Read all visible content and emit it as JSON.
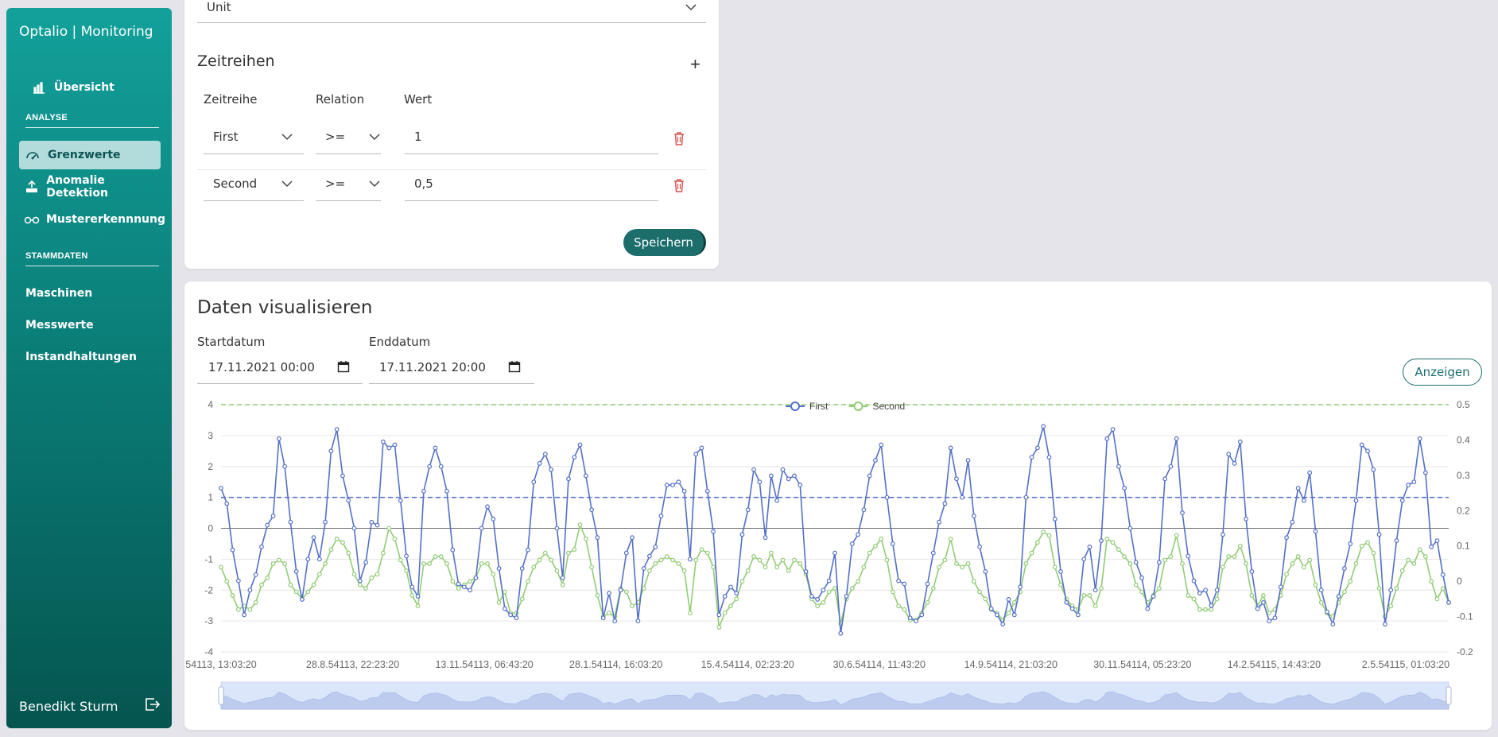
{
  "sidebar": {
    "brand": "Optalio | Monitoring",
    "overview": "Übersicht",
    "section_analysis": "ANALYSE",
    "item_limits": "Grenzwerte",
    "item_anomaly": "Anomalie Detektion",
    "item_pattern": "Mustererkennnung",
    "section_master": "STAMMDATEN",
    "item_machines": "Maschinen",
    "item_measures": "Messwerte",
    "item_maintenance": "Instandhaltungen",
    "user": "Benedikt Sturm"
  },
  "limits_card": {
    "unit_value": "Unit",
    "title": "Zeitreihen",
    "col_series": "Zeitreihe",
    "col_relation": "Relation",
    "col_value": "Wert",
    "rows": [
      {
        "series": "First",
        "relation": ">=",
        "value": "1"
      },
      {
        "series": "Second",
        "relation": ">=",
        "value": "0,5"
      }
    ],
    "save_label": "Speichern"
  },
  "viz_card": {
    "title": "Daten visualisieren",
    "start_label": "Startdatum",
    "start_value": "17.11.2021 00:00",
    "end_label": "Enddatum",
    "end_value": "17.11.2021 20:00",
    "show_label": "Anzeigen"
  },
  "chart_data": {
    "type": "line",
    "legend": [
      "First",
      "Second"
    ],
    "legend_position": "top-center",
    "y_left": {
      "min": -4,
      "max": 4,
      "ticks": [
        "4",
        "3",
        "2",
        "1",
        "0",
        "-1",
        "-2",
        "-3",
        "-4"
      ]
    },
    "y_right": {
      "min": -0.2,
      "max": 0.5,
      "ticks": [
        "0.5",
        "0.4",
        "0.3",
        "0.2",
        "0.1",
        "0",
        "-0.1",
        "-0.2"
      ]
    },
    "x_ticks": [
      "54113, 13:03:20",
      "28.8.54113, 22:23:20",
      "13.11.54113, 06:43:20",
      "28.1.54114, 16:03:20",
      "15.4.54114, 02:23:20",
      "30.6.54114, 11:43:20",
      "14.9.54114, 21:03:20",
      "30.11.54114, 05:23:20",
      "14.2.54115, 14:43:20",
      "2.5.54115, 01:03:20"
    ],
    "threshold_first": 1,
    "threshold_second": 0.5,
    "series": [
      {
        "name": "First",
        "color": "#5470c6",
        "axis": "left",
        "values": [
          1.3,
          0.8,
          -0.7,
          -1.7,
          -2.8,
          -2.0,
          -1.5,
          -0.6,
          0.1,
          0.4,
          2.9,
          2.0,
          0.2,
          -1.4,
          -2.3,
          -1.0,
          -0.3,
          -1.0,
          0.2,
          2.5,
          3.2,
          1.7,
          0.9,
          0.0,
          -1.7,
          -1.1,
          0.2,
          0.1,
          2.8,
          2.6,
          2.7,
          0.9,
          -0.9,
          -1.9,
          -2.2,
          1.2,
          2.0,
          2.6,
          2.0,
          1.2,
          -0.7,
          -1.8,
          -1.9,
          -2.0,
          -1.6,
          0.0,
          0.7,
          0.3,
          -1.3,
          -2.6,
          -2.8,
          -2.9,
          -1.3,
          -0.7,
          1.5,
          2.1,
          2.4,
          1.9,
          0.0,
          -1.6,
          1.6,
          2.3,
          2.7,
          1.7,
          0.6,
          -0.3,
          -2.9,
          -2.1,
          -3.0,
          -2.0,
          -0.8,
          -0.3,
          -3.0,
          -1.3,
          -0.9,
          -0.6,
          0.4,
          1.4,
          1.4,
          1.5,
          1.2,
          -1.0,
          2.4,
          2.6,
          1.2,
          -0.1,
          -2.8,
          -2.2,
          -1.9,
          -2.1,
          -0.2,
          0.6,
          1.9,
          1.5,
          -0.3,
          1.7,
          0.9,
          1.9,
          1.6,
          1.7,
          1.4,
          -1.4,
          -2.2,
          -2.3,
          -2.0,
          -1.7,
          -0.8,
          -3.4,
          -2.2,
          -0.5,
          -0.2,
          0.6,
          1.7,
          2.2,
          2.7,
          1.0,
          -0.5,
          -1.7,
          -1.8,
          -2.9,
          -3.0,
          -2.8,
          -1.8,
          -0.8,
          0.2,
          0.8,
          2.6,
          1.6,
          1.0,
          2.2,
          0.4,
          -0.6,
          -1.4,
          -2.6,
          -2.8,
          -3.1,
          -2.3,
          -2.8,
          -1.9,
          1.0,
          2.3,
          2.6,
          3.3,
          2.3,
          0.3,
          -1.4,
          -2.4,
          -2.6,
          -2.8,
          -1.0,
          -0.6,
          -2.0,
          -0.4,
          2.9,
          3.2,
          2.0,
          1.3,
          0.0,
          -1.1,
          -1.6,
          -2.6,
          -2.2,
          -1.1,
          1.6,
          2.0,
          2.9,
          0.5,
          -0.9,
          -1.7,
          -2.1,
          -2.0,
          -2.5,
          -2.0,
          -0.2,
          2.4,
          2.1,
          2.8,
          0.3,
          -1.4,
          -2.6,
          -2.4,
          -3.0,
          -2.9,
          -1.9,
          -0.3,
          0.2,
          1.3,
          0.9,
          1.8,
          -0.1,
          -2.0,
          -2.7,
          -3.1,
          -2.2,
          -1.3,
          -0.5,
          0.9,
          2.7,
          2.5,
          1.9,
          -0.2,
          -3.1,
          -2.0,
          -0.4,
          0.9,
          1.4,
          1.5,
          2.9,
          1.8,
          -0.6,
          -0.4,
          -1.5,
          -2.4
        ]
      },
      {
        "name": "Second",
        "color": "#91cc75",
        "axis": "right",
        "values": [
          0.04,
          0.0,
          -0.04,
          -0.08,
          -0.07,
          -0.08,
          -0.06,
          -0.01,
          0.01,
          0.05,
          0.06,
          0.05,
          -0.01,
          -0.03,
          -0.05,
          -0.03,
          -0.01,
          0.02,
          0.05,
          0.09,
          0.12,
          0.11,
          0.08,
          0.02,
          -0.01,
          -0.02,
          0.01,
          0.02,
          0.08,
          0.15,
          0.12,
          0.06,
          0.03,
          -0.04,
          -0.07,
          0.05,
          0.05,
          0.07,
          0.07,
          0.05,
          0.0,
          -0.02,
          -0.01,
          0.0,
          0.01,
          0.05,
          0.05,
          0.02,
          -0.06,
          -0.03,
          -0.09,
          -0.09,
          -0.05,
          0.0,
          0.04,
          0.06,
          0.08,
          0.06,
          0.03,
          -0.01,
          0.08,
          0.09,
          0.16,
          0.12,
          0.04,
          -0.04,
          -0.1,
          -0.09,
          -0.1,
          -0.02,
          -0.03,
          -0.07,
          -0.06,
          -0.02,
          0.03,
          0.05,
          0.06,
          0.07,
          0.06,
          0.05,
          0.03,
          -0.09,
          0.06,
          0.09,
          0.08,
          0.04,
          -0.13,
          -0.09,
          -0.07,
          -0.05,
          0.0,
          0.03,
          0.07,
          0.06,
          0.04,
          0.08,
          0.04,
          0.06,
          0.03,
          0.06,
          0.05,
          0.02,
          -0.05,
          -0.07,
          -0.06,
          -0.03,
          -0.02,
          -0.12,
          -0.05,
          -0.02,
          0.0,
          0.04,
          0.08,
          0.1,
          0.12,
          0.06,
          -0.03,
          -0.07,
          -0.08,
          -0.11,
          -0.11,
          -0.09,
          -0.06,
          -0.02,
          0.04,
          0.06,
          0.12,
          0.05,
          0.04,
          0.05,
          0.0,
          -0.03,
          -0.05,
          -0.08,
          -0.09,
          -0.11,
          -0.09,
          -0.06,
          -0.03,
          0.05,
          0.08,
          0.11,
          0.14,
          0.13,
          0.04,
          -0.01,
          -0.05,
          -0.07,
          -0.08,
          -0.04,
          -0.04,
          -0.07,
          -0.02,
          0.12,
          0.11,
          0.09,
          0.07,
          0.05,
          -0.01,
          -0.03,
          -0.06,
          -0.04,
          -0.02,
          0.06,
          0.07,
          0.13,
          0.05,
          -0.04,
          -0.05,
          -0.08,
          -0.08,
          -0.08,
          -0.05,
          0.04,
          0.07,
          0.07,
          0.1,
          0.05,
          -0.04,
          -0.07,
          -0.04,
          -0.09,
          -0.08,
          -0.04,
          0.02,
          0.05,
          0.07,
          0.04,
          0.06,
          -0.01,
          -0.06,
          -0.09,
          -0.1,
          -0.06,
          -0.03,
          0.0,
          0.05,
          0.1,
          0.11,
          0.08,
          -0.02,
          -0.1,
          -0.07,
          -0.02,
          0.03,
          0.06,
          0.05,
          0.09,
          0.07,
          0.0,
          -0.05,
          -0.02,
          -0.06
        ]
      }
    ]
  }
}
